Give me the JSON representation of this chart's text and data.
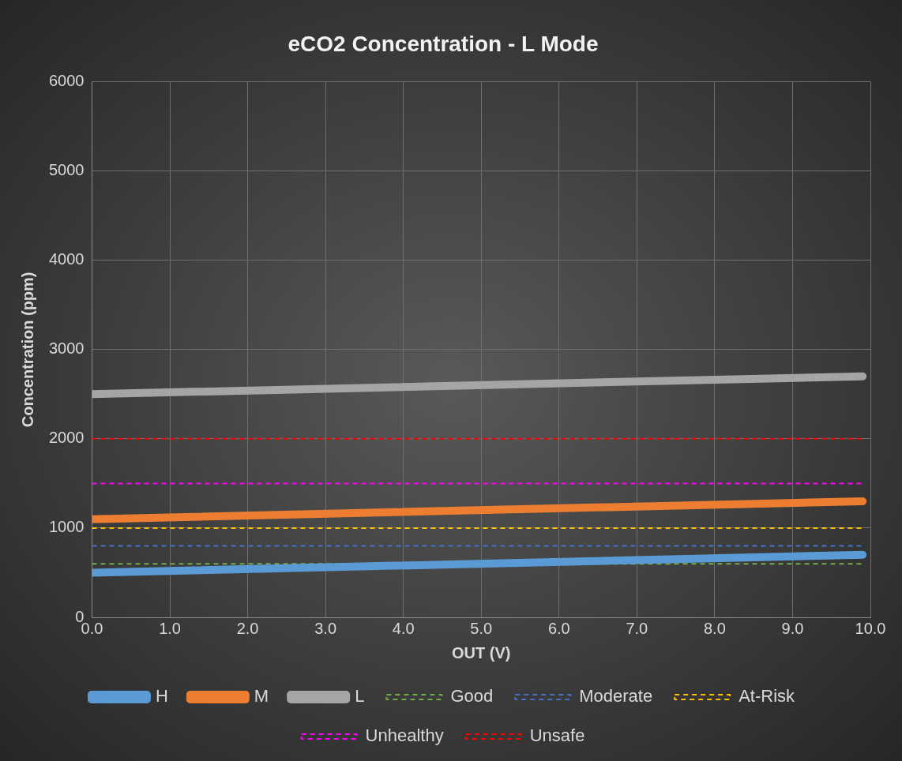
{
  "chart_data": {
    "type": "line",
    "title": "eCO2 Concentration - L Mode",
    "xlabel": "OUT (V)",
    "ylabel": "Concentration (ppm)",
    "xlim": [
      0,
      10
    ],
    "xticks": [
      {
        "value": 0,
        "label": "0.0"
      },
      {
        "value": 1,
        "label": "1.0"
      },
      {
        "value": 2,
        "label": "2.0"
      },
      {
        "value": 3,
        "label": "3.0"
      },
      {
        "value": 4,
        "label": "4.0"
      },
      {
        "value": 5,
        "label": "5.0"
      },
      {
        "value": 6,
        "label": "6.0"
      },
      {
        "value": 7,
        "label": "7.0"
      },
      {
        "value": 8,
        "label": "8.0"
      },
      {
        "value": 9,
        "label": "9.0"
      },
      {
        "value": 10,
        "label": "10.0"
      }
    ],
    "ylim": [
      0,
      6000
    ],
    "yticks": [
      0,
      1000,
      2000,
      3000,
      4000,
      5000,
      6000
    ],
    "grid": true,
    "legend": "bottom",
    "marker": "none",
    "x": [
      0,
      9.9
    ],
    "series": [
      {
        "name": "H",
        "color": "#5b9bd5",
        "values": [
          500,
          700
        ],
        "line_style": "solid"
      },
      {
        "name": "M",
        "color": "#ed7d31",
        "values": [
          1100,
          1300
        ],
        "line_style": "solid"
      },
      {
        "name": "L",
        "color": "#a5a5a5",
        "values": [
          2500,
          2700
        ],
        "line_style": "solid"
      },
      {
        "name": "Good",
        "color": "#70ad47",
        "values": [
          600,
          600
        ],
        "line_style": "dashed"
      },
      {
        "name": "Moderate",
        "color": "#4472c4",
        "values": [
          800,
          800
        ],
        "line_style": "dashed"
      },
      {
        "name": "At-Risk",
        "color": "#ffc000",
        "values": [
          1000,
          1000
        ],
        "line_style": "dashed"
      },
      {
        "name": "Unhealthy",
        "color": "#ff00ff",
        "values": [
          1500,
          1500
        ],
        "line_style": "dashed"
      },
      {
        "name": "Unsafe",
        "color": "#ff0000",
        "values": [
          2000,
          2000
        ],
        "line_style": "dashed"
      }
    ]
  }
}
